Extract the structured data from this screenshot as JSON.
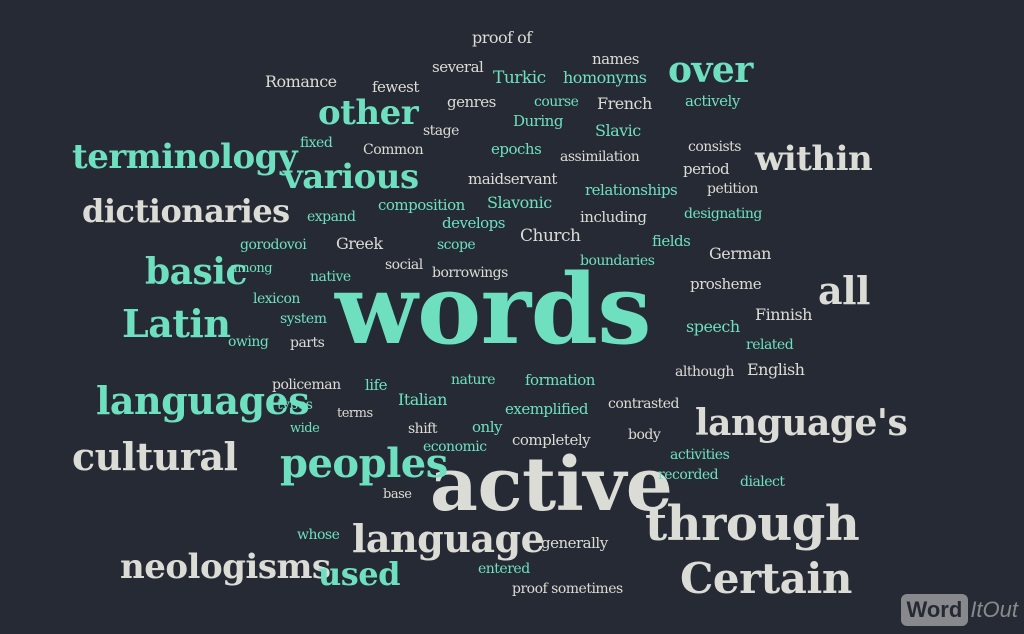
{
  "colors": {
    "background": "#262a34",
    "teal": "#6ee0c0",
    "light": "#dcdcd6"
  },
  "logo": {
    "brand": "Word",
    "suffix": "ItOut"
  },
  "words": [
    {
      "text": "words",
      "color": "teal"
    },
    {
      "text": "active",
      "color": "light"
    },
    {
      "text": "through",
      "color": "light"
    },
    {
      "text": "Certain",
      "color": "light"
    },
    {
      "text": "language",
      "color": "light"
    },
    {
      "text": "peoples",
      "color": "teal"
    },
    {
      "text": "language's",
      "color": "light"
    },
    {
      "text": "languages",
      "color": "teal"
    },
    {
      "text": "neologisms",
      "color": "light"
    },
    {
      "text": "cultural",
      "color": "light"
    },
    {
      "text": "terminology",
      "color": "teal"
    },
    {
      "text": "dictionaries",
      "color": "light"
    },
    {
      "text": "within",
      "color": "light"
    },
    {
      "text": "various",
      "color": "teal"
    },
    {
      "text": "basic",
      "color": "teal"
    },
    {
      "text": "Latin",
      "color": "teal"
    },
    {
      "text": "other",
      "color": "teal"
    },
    {
      "text": "over",
      "color": "teal"
    },
    {
      "text": "all",
      "color": "light"
    },
    {
      "text": "used",
      "color": "teal"
    },
    {
      "text": "proof of",
      "color": "light"
    },
    {
      "text": "names",
      "color": "light"
    },
    {
      "text": "several",
      "color": "light"
    },
    {
      "text": "Turkic",
      "color": "teal"
    },
    {
      "text": "homonyms",
      "color": "teal"
    },
    {
      "text": "Romance",
      "color": "light"
    },
    {
      "text": "fewest",
      "color": "light"
    },
    {
      "text": "genres",
      "color": "light"
    },
    {
      "text": "course",
      "color": "teal"
    },
    {
      "text": "French",
      "color": "light"
    },
    {
      "text": "actively",
      "color": "teal"
    },
    {
      "text": "During",
      "color": "teal"
    },
    {
      "text": "stage",
      "color": "light"
    },
    {
      "text": "Slavic",
      "color": "teal"
    },
    {
      "text": "fixed",
      "color": "teal"
    },
    {
      "text": "Common",
      "color": "light"
    },
    {
      "text": "epochs",
      "color": "teal"
    },
    {
      "text": "assimilation",
      "color": "light"
    },
    {
      "text": "consists",
      "color": "light"
    },
    {
      "text": "period",
      "color": "light"
    },
    {
      "text": "maidservant",
      "color": "light"
    },
    {
      "text": "relationships",
      "color": "teal"
    },
    {
      "text": "petition",
      "color": "light"
    },
    {
      "text": "composition",
      "color": "teal"
    },
    {
      "text": "Slavonic",
      "color": "teal"
    },
    {
      "text": "expand",
      "color": "teal"
    },
    {
      "text": "develops",
      "color": "teal"
    },
    {
      "text": "including",
      "color": "light"
    },
    {
      "text": "designating",
      "color": "teal"
    },
    {
      "text": "gorodovoi",
      "color": "teal"
    },
    {
      "text": "Greek",
      "color": "light"
    },
    {
      "text": "scope",
      "color": "teal"
    },
    {
      "text": "Church",
      "color": "light"
    },
    {
      "text": "fields",
      "color": "teal"
    },
    {
      "text": "German",
      "color": "light"
    },
    {
      "text": "among",
      "color": "teal"
    },
    {
      "text": "native",
      "color": "teal"
    },
    {
      "text": "social",
      "color": "light"
    },
    {
      "text": "borrowings",
      "color": "light"
    },
    {
      "text": "boundaries",
      "color": "teal"
    },
    {
      "text": "prosheme",
      "color": "light"
    },
    {
      "text": "lexicon",
      "color": "teal"
    },
    {
      "text": "system",
      "color": "teal"
    },
    {
      "text": "Finnish",
      "color": "light"
    },
    {
      "text": "owing",
      "color": "teal"
    },
    {
      "text": "parts",
      "color": "light"
    },
    {
      "text": "speech",
      "color": "teal"
    },
    {
      "text": "related",
      "color": "teal"
    },
    {
      "text": "policeman",
      "color": "light"
    },
    {
      "text": "life",
      "color": "teal"
    },
    {
      "text": "nature",
      "color": "teal"
    },
    {
      "text": "formation",
      "color": "teal"
    },
    {
      "text": "although",
      "color": "light"
    },
    {
      "text": "English",
      "color": "light"
    },
    {
      "text": "types",
      "color": "teal"
    },
    {
      "text": "terms",
      "color": "light"
    },
    {
      "text": "Italian",
      "color": "teal"
    },
    {
      "text": "exemplified",
      "color": "teal"
    },
    {
      "text": "contrasted",
      "color": "light"
    },
    {
      "text": "wide",
      "color": "teal"
    },
    {
      "text": "shift",
      "color": "light"
    },
    {
      "text": "only",
      "color": "teal"
    },
    {
      "text": "economic",
      "color": "teal"
    },
    {
      "text": "completely",
      "color": "light"
    },
    {
      "text": "body",
      "color": "light"
    },
    {
      "text": "activities",
      "color": "teal"
    },
    {
      "text": "recorded",
      "color": "teal"
    },
    {
      "text": "dialect",
      "color": "teal"
    },
    {
      "text": "base",
      "color": "light"
    },
    {
      "text": "whose",
      "color": "teal"
    },
    {
      "text": "generally",
      "color": "light"
    },
    {
      "text": "entered",
      "color": "teal"
    },
    {
      "text": "proof sometimes",
      "color": "light"
    }
  ]
}
